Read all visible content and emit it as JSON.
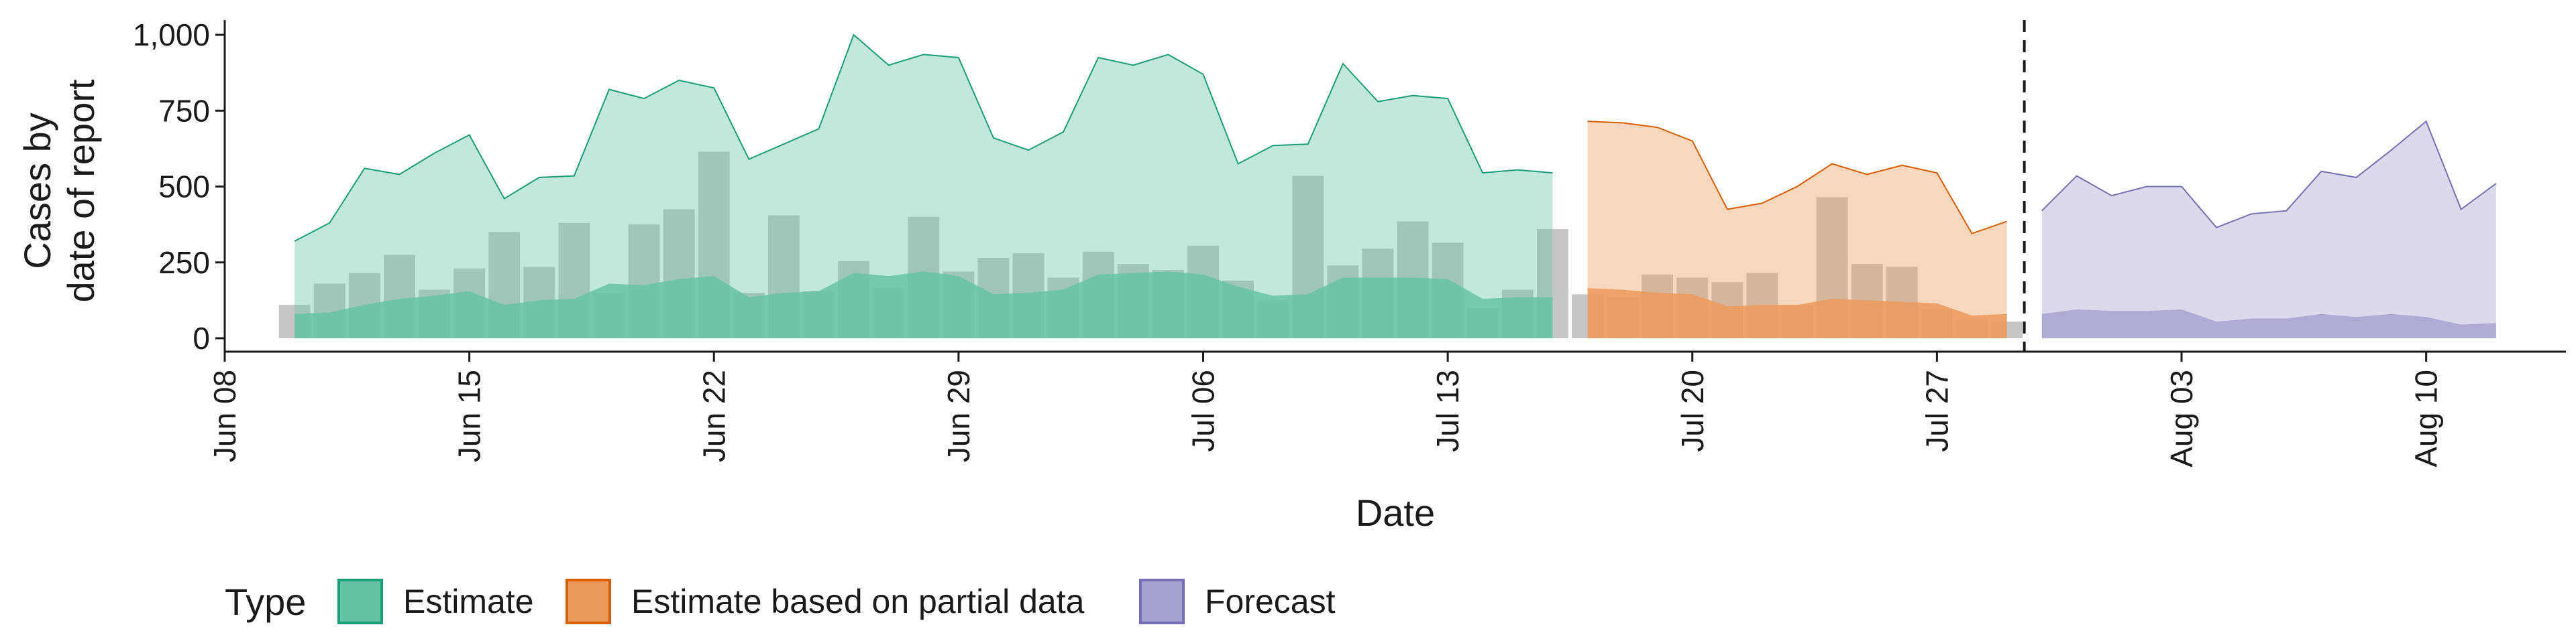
{
  "chart_data": {
    "type": "area",
    "xlabel": "Date",
    "ylabel_lines": [
      "Cases by",
      "date of report"
    ],
    "ylim": [
      0,
      1000
    ],
    "yticks": [
      0,
      250,
      500,
      750,
      1000
    ],
    "ytick_labels": [
      "0",
      "250",
      "500",
      "750",
      "1,000"
    ],
    "x_start": "2020-06-08",
    "x_end": "2020-08-14",
    "xticks": [
      "2020-06-08",
      "2020-06-15",
      "2020-06-22",
      "2020-06-29",
      "2020-07-06",
      "2020-07-13",
      "2020-07-20",
      "2020-07-27",
      "2020-08-03",
      "2020-08-10"
    ],
    "xtick_labels": [
      "Jun 08",
      "Jun 15",
      "Jun 22",
      "Jun 29",
      "Jul 06",
      "Jul 13",
      "Jul 20",
      "Jul 27",
      "Aug 03",
      "Aug 10"
    ],
    "vline_date": "2020-07-29",
    "grid": false,
    "legend": {
      "title": "Type",
      "position": "bottom",
      "items": [
        {
          "label": "Estimate",
          "fill": "#66c2a5",
          "stroke": "#1b9e77"
        },
        {
          "label": "Estimate based on partial data",
          "fill": "#eb9a5a",
          "stroke": "#d95f02"
        },
        {
          "label": "Forecast",
          "fill": "#a6a3d0",
          "stroke": "#7570b3"
        }
      ]
    },
    "bars": {
      "color": "#b3b3b3",
      "dates": [
        "2020-06-10",
        "2020-06-11",
        "2020-06-12",
        "2020-06-13",
        "2020-06-14",
        "2020-06-15",
        "2020-06-16",
        "2020-06-17",
        "2020-06-18",
        "2020-06-19",
        "2020-06-20",
        "2020-06-21",
        "2020-06-22",
        "2020-06-23",
        "2020-06-24",
        "2020-06-25",
        "2020-06-26",
        "2020-06-27",
        "2020-06-28",
        "2020-06-29",
        "2020-06-30",
        "2020-07-01",
        "2020-07-02",
        "2020-07-03",
        "2020-07-04",
        "2020-07-05",
        "2020-07-06",
        "2020-07-07",
        "2020-07-08",
        "2020-07-09",
        "2020-07-10",
        "2020-07-11",
        "2020-07-12",
        "2020-07-13",
        "2020-07-14",
        "2020-07-15",
        "2020-07-16",
        "2020-07-17",
        "2020-07-18",
        "2020-07-19",
        "2020-07-20",
        "2020-07-21",
        "2020-07-22",
        "2020-07-23",
        "2020-07-24",
        "2020-07-25",
        "2020-07-26",
        "2020-07-27",
        "2020-07-28",
        "2020-07-29"
      ],
      "values": [
        110,
        180,
        215,
        275,
        160,
        230,
        350,
        235,
        380,
        150,
        375,
        425,
        615,
        150,
        405,
        155,
        255,
        165,
        400,
        220,
        265,
        280,
        200,
        285,
        245,
        225,
        305,
        190,
        120,
        535,
        240,
        295,
        385,
        315,
        100,
        160,
        360,
        145,
        135,
        210,
        200,
        185,
        215,
        110,
        465,
        245,
        235,
        95,
        60,
        55
      ]
    },
    "series": [
      {
        "name": "Estimate",
        "dates": [
          "2020-06-10",
          "2020-06-11",
          "2020-06-12",
          "2020-06-13",
          "2020-06-14",
          "2020-06-15",
          "2020-06-16",
          "2020-06-17",
          "2020-06-18",
          "2020-06-19",
          "2020-06-20",
          "2020-06-21",
          "2020-06-22",
          "2020-06-23",
          "2020-06-24",
          "2020-06-25",
          "2020-06-26",
          "2020-06-27",
          "2020-06-28",
          "2020-06-29",
          "2020-06-30",
          "2020-07-01",
          "2020-07-02",
          "2020-07-03",
          "2020-07-04",
          "2020-07-05",
          "2020-07-06",
          "2020-07-07",
          "2020-07-08",
          "2020-07-09",
          "2020-07-10",
          "2020-07-11",
          "2020-07-12",
          "2020-07-13",
          "2020-07-14",
          "2020-07-15",
          "2020-07-16"
        ],
        "upper": [
          320,
          380,
          560,
          540,
          610,
          670,
          460,
          530,
          535,
          820,
          790,
          850,
          825,
          590,
          640,
          690,
          1000,
          900,
          935,
          925,
          660,
          620,
          680,
          925,
          900,
          935,
          870,
          575,
          635,
          640,
          905,
          780,
          800,
          790,
          545,
          555,
          545
        ],
        "lower": [
          80,
          85,
          110,
          130,
          140,
          155,
          110,
          125,
          130,
          180,
          175,
          195,
          205,
          135,
          150,
          155,
          215,
          205,
          220,
          205,
          145,
          150,
          160,
          210,
          215,
          220,
          210,
          170,
          140,
          145,
          200,
          200,
          200,
          195,
          130,
          135,
          135
        ]
      },
      {
        "name": "Estimate based on partial data",
        "dates": [
          "2020-07-17",
          "2020-07-18",
          "2020-07-19",
          "2020-07-20",
          "2020-07-21",
          "2020-07-22",
          "2020-07-23",
          "2020-07-24",
          "2020-07-25",
          "2020-07-26",
          "2020-07-27",
          "2020-07-28",
          "2020-07-29"
        ],
        "upper": [
          715,
          710,
          695,
          650,
          425,
          445,
          500,
          575,
          540,
          570,
          545,
          345,
          385
        ],
        "lower": [
          165,
          160,
          150,
          145,
          105,
          110,
          110,
          130,
          125,
          120,
          115,
          75,
          80
        ]
      },
      {
        "name": "Forecast",
        "dates": [
          "2020-07-30",
          "2020-07-31",
          "2020-08-01",
          "2020-08-02",
          "2020-08-03",
          "2020-08-04",
          "2020-08-05",
          "2020-08-06",
          "2020-08-07",
          "2020-08-08",
          "2020-08-09",
          "2020-08-10",
          "2020-08-11",
          "2020-08-12"
        ],
        "upper": [
          420,
          535,
          470,
          500,
          500,
          365,
          410,
          420,
          550,
          530,
          620,
          715,
          425,
          510
        ],
        "lower": [
          80,
          95,
          90,
          90,
          95,
          55,
          65,
          65,
          80,
          70,
          80,
          70,
          45,
          50
        ]
      }
    ]
  }
}
